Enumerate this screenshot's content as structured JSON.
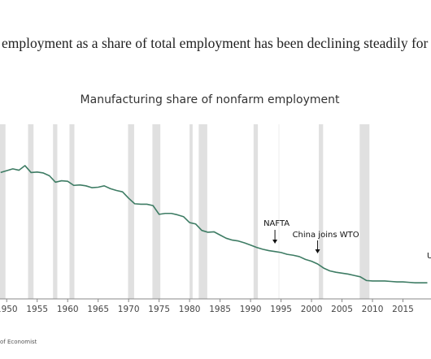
{
  "headline": "employment as a share of total employment has been declining steadily for",
  "chart_data": {
    "type": "line",
    "title": "Manufacturing share of nonfarm employment",
    "x": [
      1949,
      1950,
      1951,
      1952,
      1953,
      1954,
      1955,
      1956,
      1957,
      1958,
      1959,
      1960,
      1961,
      1962,
      1963,
      1964,
      1965,
      1966,
      1967,
      1968,
      1969,
      1970,
      1971,
      1972,
      1973,
      1974,
      1975,
      1976,
      1977,
      1978,
      1979,
      1980,
      1981,
      1982,
      1983,
      1984,
      1985,
      1986,
      1987,
      1988,
      1989,
      1990,
      1991,
      1992,
      1993,
      1994,
      1995,
      1996,
      1997,
      1998,
      1999,
      2000,
      2001,
      2002,
      2003,
      2004,
      2005,
      2006,
      2007,
      2008,
      2009,
      2010,
      2011,
      2012,
      2013,
      2014,
      2015,
      2016,
      2017,
      2018,
      2019
    ],
    "values": [
      32.5,
      32.9,
      33.3,
      33.0,
      34.0,
      32.5,
      32.6,
      32.4,
      31.8,
      30.4,
      30.7,
      30.6,
      29.7,
      29.8,
      29.6,
      29.2,
      29.3,
      29.6,
      29.0,
      28.6,
      28.3,
      26.9,
      25.7,
      25.6,
      25.6,
      25.3,
      23.4,
      23.6,
      23.6,
      23.3,
      22.9,
      21.6,
      21.3,
      19.9,
      19.5,
      19.6,
      18.9,
      18.2,
      17.8,
      17.6,
      17.2,
      16.7,
      16.2,
      15.8,
      15.5,
      15.3,
      15.1,
      14.7,
      14.5,
      14.2,
      13.6,
      13.2,
      12.6,
      11.7,
      11.1,
      10.8,
      10.6,
      10.4,
      10.1,
      9.8,
      9.0,
      8.9,
      8.9,
      8.9,
      8.8,
      8.7,
      8.7,
      8.6,
      8.5,
      8.5,
      8.5
    ],
    "color": "#3e7c64",
    "xlim": [
      1948.9,
      2019.6
    ],
    "xticks": [
      1950,
      1955,
      1960,
      1965,
      1970,
      1975,
      1980,
      1985,
      1990,
      1995,
      2000,
      2005,
      2010,
      2015
    ],
    "ylim": [
      5,
      43
    ],
    "recessions": [
      [
        1948.9,
        1949.8
      ],
      [
        1953.5,
        1954.4
      ],
      [
        1957.6,
        1958.3
      ],
      [
        1960.3,
        1961.1
      ],
      [
        1969.9,
        1970.9
      ],
      [
        1973.9,
        1975.2
      ],
      [
        1980.0,
        1980.5
      ],
      [
        1981.5,
        1982.9
      ],
      [
        1990.5,
        1991.2
      ],
      [
        2001.2,
        2001.9
      ],
      [
        2007.9,
        2009.5
      ]
    ],
    "recession_color": "#e0e0e0",
    "annotations": [
      {
        "text": "NAFTA",
        "x": 1994
      },
      {
        "text": "China joins WTO",
        "x": 2001
      },
      {
        "text": "U"
      }
    ]
  },
  "source": "of Economist"
}
